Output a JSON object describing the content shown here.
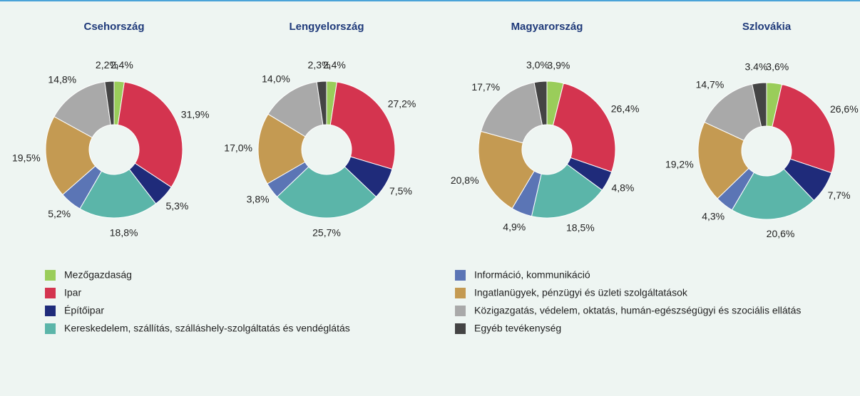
{
  "chart_data": [
    {
      "type": "pie",
      "title": "Csehország",
      "categories": [
        "Mezőgazdaság",
        "Ipar",
        "Építőipar",
        "Kereskedelem, szállítás, szálláshely-szolgáltatás és vendéglátás",
        "Információ, kommunikáció",
        "Ingatlanügyek, pénzügyi és üzleti szolgáltatások",
        "Közigazgatás, védelem, oktatás, humán-egészségügyi és szociális ellátás",
        "Egyéb tevékenység"
      ],
      "values": [
        2.4,
        31.9,
        5.3,
        18.8,
        5.2,
        19.5,
        14.8,
        2.2
      ],
      "value_labels": [
        "2,4%",
        "31,9%",
        "5,3%",
        "18,8%",
        "5,2%",
        "19,5%",
        "14,8%",
        "2,2%"
      ],
      "colors": [
        "#9acd5a",
        "#d4344f",
        "#1f2b7a",
        "#5bb5a9",
        "#5b75b5",
        "#c49a52",
        "#a9a9a9",
        "#444444"
      ]
    },
    {
      "type": "pie",
      "title": "Lengyelország",
      "categories": [
        "Mezőgazdaság",
        "Ipar",
        "Építőipar",
        "Kereskedelem, szállítás, szálláshely-szolgáltatás és vendéglátás",
        "Információ, kommunikáció",
        "Ingatlanügyek, pénzügyi és üzleti szolgáltatások",
        "Közigazgatás, védelem, oktatás, humán-egészségügyi és szociális ellátás",
        "Egyéb tevékenység"
      ],
      "values": [
        2.4,
        27.2,
        7.5,
        25.7,
        3.8,
        17.0,
        14.0,
        2.3
      ],
      "value_labels": [
        "2,4%",
        "27,2%",
        "7,5%",
        "25,7%",
        "3,8%",
        "17,0%",
        "14,0%",
        "2,3%"
      ],
      "colors": [
        "#9acd5a",
        "#d4344f",
        "#1f2b7a",
        "#5bb5a9",
        "#5b75b5",
        "#c49a52",
        "#a9a9a9",
        "#444444"
      ]
    },
    {
      "type": "pie",
      "title": "Magyarország",
      "categories": [
        "Mezőgazdaság",
        "Ipar",
        "Építőipar",
        "Kereskedelem, szállítás, szálláshely-szolgáltatás és vendéglátás",
        "Információ, kommunikáció",
        "Ingatlanügyek, pénzügyi és üzleti szolgáltatások",
        "Közigazgatás, védelem, oktatás, humán-egészségügyi és szociális ellátás",
        "Egyéb tevékenység"
      ],
      "values": [
        3.9,
        26.4,
        4.8,
        18.5,
        4.9,
        20.8,
        17.7,
        3.0
      ],
      "value_labels": [
        "3,9%",
        "26,4%",
        "4,8%",
        "18,5%",
        "4,9%",
        "20,8%",
        "17,7%",
        "3,0%"
      ],
      "colors": [
        "#9acd5a",
        "#d4344f",
        "#1f2b7a",
        "#5bb5a9",
        "#5b75b5",
        "#c49a52",
        "#a9a9a9",
        "#444444"
      ]
    },
    {
      "type": "pie",
      "title": "Szlovákia",
      "categories": [
        "Mezőgazdaság",
        "Ipar",
        "Építőipar",
        "Kereskedelem, szállítás, szálláshely-szolgáltatás és vendéglátás",
        "Információ, kommunikáció",
        "Ingatlanügyek, pénzügyi és üzleti szolgáltatások",
        "Közigazgatás, védelem, oktatás, humán-egészségügyi és szociális ellátás",
        "Egyéb tevékenység"
      ],
      "values": [
        3.6,
        26.6,
        7.7,
        20.6,
        4.3,
        19.2,
        14.7,
        3.4
      ],
      "value_labels": [
        "3,6%",
        "26,6%",
        "7,7%",
        "20,6%",
        "4,3%",
        "19,2%",
        "14,7%",
        "3.4%"
      ],
      "colors": [
        "#9acd5a",
        "#d4344f",
        "#1f2b7a",
        "#5bb5a9",
        "#5b75b5",
        "#c49a52",
        "#a9a9a9",
        "#444444"
      ]
    }
  ]
}
